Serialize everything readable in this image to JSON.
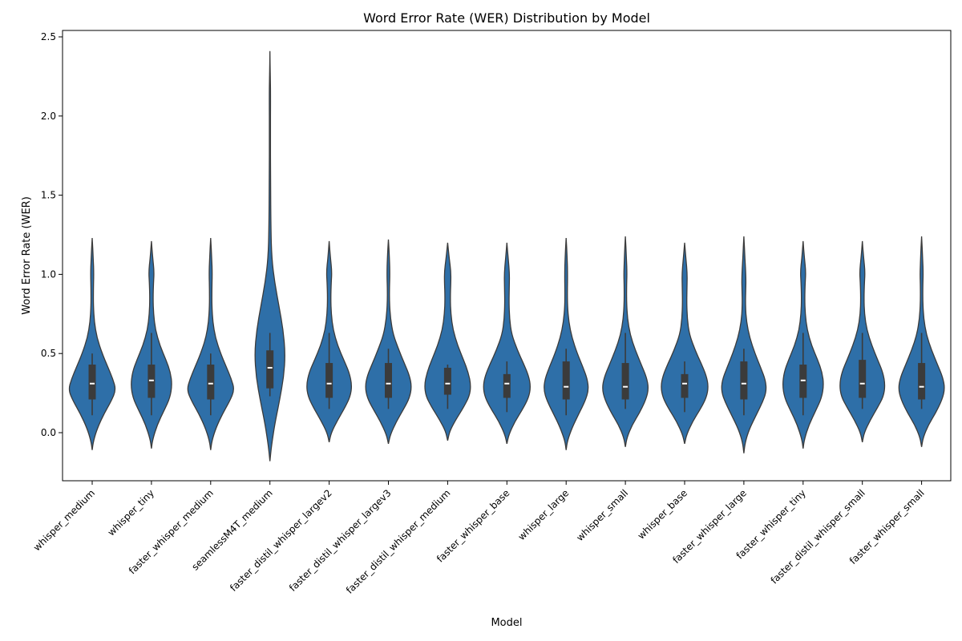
{
  "chart_data": {
    "type": "violin",
    "title": "Word Error Rate (WER) Distribution by Model",
    "xlabel": "Model",
    "ylabel": "Word Error Rate (WER)",
    "ylim": [
      -0.3,
      2.5
    ],
    "yticks": [
      0.0,
      0.5,
      1.0,
      1.5,
      2.0,
      2.5
    ],
    "ytick_labels": [
      "0.0",
      "0.5",
      "1.0",
      "1.5",
      "2.0",
      "2.5"
    ],
    "grid": false,
    "colors": {
      "fill": "#2e6fa8",
      "edge": "#3b3b3b",
      "box": "#3b3b3b",
      "median": "#ffffff"
    },
    "categories": [
      "whisper_medium",
      "whisper_tiny",
      "faster_whisper_medium",
      "seamlessM4T_medium",
      "faster_distil_whisper_largev2",
      "faster_distil_whisper_largev3",
      "faster_distil_whisper_medium",
      "faster_whisper_base",
      "whisper_large",
      "whisper_small",
      "whisper_base",
      "faster_whisper_large",
      "faster_whisper_tiny",
      "faster_distil_whisper_small",
      "faster_whisper_small"
    ],
    "series": [
      {
        "category": "whisper_medium",
        "min": -0.11,
        "max": 1.23,
        "q1": 0.21,
        "median": 0.31,
        "q3": 0.43,
        "whisker_low": 0.11,
        "whisker_high": 0.5,
        "density": [
          [
            -0.11,
            0
          ],
          [
            -0.05,
            0.05
          ],
          [
            0.03,
            0.2
          ],
          [
            0.12,
            0.45
          ],
          [
            0.2,
            0.72
          ],
          [
            0.27,
            0.9
          ],
          [
            0.34,
            0.78
          ],
          [
            0.42,
            0.58
          ],
          [
            0.5,
            0.38
          ],
          [
            0.6,
            0.18
          ],
          [
            0.7,
            0.08
          ],
          [
            0.8,
            0.045
          ],
          [
            0.9,
            0.045
          ],
          [
            1.0,
            0.06
          ],
          [
            1.1,
            0.04
          ],
          [
            1.23,
            0
          ]
        ]
      },
      {
        "category": "whisper_tiny",
        "min": -0.1,
        "max": 1.21,
        "q1": 0.22,
        "median": 0.33,
        "q3": 0.43,
        "whisker_low": 0.11,
        "whisker_high": 0.63,
        "density": [
          [
            -0.1,
            0
          ],
          [
            -0.04,
            0.05
          ],
          [
            0.05,
            0.22
          ],
          [
            0.14,
            0.48
          ],
          [
            0.22,
            0.7
          ],
          [
            0.3,
            0.78
          ],
          [
            0.38,
            0.72
          ],
          [
            0.46,
            0.55
          ],
          [
            0.55,
            0.32
          ],
          [
            0.65,
            0.15
          ],
          [
            0.75,
            0.08
          ],
          [
            0.85,
            0.06
          ],
          [
            0.95,
            0.08
          ],
          [
            1.02,
            0.1
          ],
          [
            1.1,
            0.05
          ],
          [
            1.21,
            0
          ]
        ]
      },
      {
        "category": "faster_whisper_medium",
        "min": -0.11,
        "max": 1.23,
        "q1": 0.21,
        "median": 0.31,
        "q3": 0.43,
        "whisker_low": 0.11,
        "whisker_high": 0.5,
        "density": [
          [
            -0.11,
            0
          ],
          [
            -0.05,
            0.05
          ],
          [
            0.03,
            0.2
          ],
          [
            0.12,
            0.45
          ],
          [
            0.2,
            0.72
          ],
          [
            0.27,
            0.9
          ],
          [
            0.34,
            0.78
          ],
          [
            0.42,
            0.58
          ],
          [
            0.5,
            0.38
          ],
          [
            0.6,
            0.18
          ],
          [
            0.7,
            0.08
          ],
          [
            0.8,
            0.045
          ],
          [
            0.9,
            0.045
          ],
          [
            1.0,
            0.06
          ],
          [
            1.1,
            0.04
          ],
          [
            1.23,
            0
          ]
        ]
      },
      {
        "category": "seamlessM4T_medium",
        "min": -0.18,
        "max": 2.41,
        "q1": 0.28,
        "median": 0.41,
        "q3": 0.52,
        "whisker_low": 0.23,
        "whisker_high": 0.63,
        "density": [
          [
            -0.18,
            0
          ],
          [
            -0.08,
            0.06
          ],
          [
            0.05,
            0.18
          ],
          [
            0.2,
            0.36
          ],
          [
            0.35,
            0.52
          ],
          [
            0.5,
            0.58
          ],
          [
            0.65,
            0.5
          ],
          [
            0.8,
            0.34
          ],
          [
            0.95,
            0.18
          ],
          [
            1.1,
            0.07
          ],
          [
            1.3,
            0.035
          ],
          [
            1.6,
            0.025
          ],
          [
            1.9,
            0.02
          ],
          [
            2.1,
            0.025
          ],
          [
            2.25,
            0.015
          ],
          [
            2.41,
            0
          ]
        ]
      },
      {
        "category": "faster_distil_whisper_largev2",
        "min": -0.06,
        "max": 1.21,
        "q1": 0.22,
        "median": 0.31,
        "q3": 0.44,
        "whisker_low": 0.15,
        "whisker_high": 0.63,
        "density": [
          [
            -0.06,
            0
          ],
          [
            0.0,
            0.08
          ],
          [
            0.08,
            0.32
          ],
          [
            0.16,
            0.6
          ],
          [
            0.23,
            0.8
          ],
          [
            0.3,
            0.86
          ],
          [
            0.38,
            0.76
          ],
          [
            0.46,
            0.55
          ],
          [
            0.55,
            0.32
          ],
          [
            0.65,
            0.15
          ],
          [
            0.75,
            0.08
          ],
          [
            0.85,
            0.06
          ],
          [
            0.95,
            0.08
          ],
          [
            1.02,
            0.1
          ],
          [
            1.1,
            0.05
          ],
          [
            1.21,
            0
          ]
        ]
      },
      {
        "category": "faster_distil_whisper_largev3",
        "min": -0.07,
        "max": 1.22,
        "q1": 0.22,
        "median": 0.31,
        "q3": 0.44,
        "whisker_low": 0.15,
        "whisker_high": 0.53,
        "density": [
          [
            -0.07,
            0
          ],
          [
            -0.01,
            0.08
          ],
          [
            0.07,
            0.3
          ],
          [
            0.15,
            0.58
          ],
          [
            0.22,
            0.8
          ],
          [
            0.29,
            0.88
          ],
          [
            0.36,
            0.8
          ],
          [
            0.44,
            0.6
          ],
          [
            0.52,
            0.4
          ],
          [
            0.62,
            0.18
          ],
          [
            0.72,
            0.08
          ],
          [
            0.82,
            0.04
          ],
          [
            0.92,
            0.04
          ],
          [
            1.0,
            0.055
          ],
          [
            1.1,
            0.04
          ],
          [
            1.22,
            0
          ]
        ]
      },
      {
        "category": "faster_distil_whisper_medium",
        "min": -0.05,
        "max": 1.2,
        "q1": 0.24,
        "median": 0.31,
        "q3": 0.41,
        "whisker_low": 0.15,
        "whisker_high": 0.43,
        "density": [
          [
            -0.05,
            0
          ],
          [
            0.01,
            0.08
          ],
          [
            0.08,
            0.3
          ],
          [
            0.16,
            0.6
          ],
          [
            0.23,
            0.82
          ],
          [
            0.3,
            0.88
          ],
          [
            0.38,
            0.78
          ],
          [
            0.46,
            0.6
          ],
          [
            0.55,
            0.38
          ],
          [
            0.65,
            0.2
          ],
          [
            0.75,
            0.12
          ],
          [
            0.85,
            0.1
          ],
          [
            0.95,
            0.12
          ],
          [
            1.02,
            0.12
          ],
          [
            1.1,
            0.06
          ],
          [
            1.2,
            0
          ]
        ]
      },
      {
        "category": "faster_whisper_base",
        "min": -0.07,
        "max": 1.2,
        "q1": 0.22,
        "median": 0.31,
        "q3": 0.37,
        "whisker_low": 0.13,
        "whisker_high": 0.45,
        "density": [
          [
            -0.07,
            0
          ],
          [
            -0.01,
            0.08
          ],
          [
            0.07,
            0.3
          ],
          [
            0.15,
            0.6
          ],
          [
            0.22,
            0.82
          ],
          [
            0.29,
            0.9
          ],
          [
            0.36,
            0.82
          ],
          [
            0.44,
            0.62
          ],
          [
            0.52,
            0.4
          ],
          [
            0.62,
            0.18
          ],
          [
            0.72,
            0.1
          ],
          [
            0.82,
            0.08
          ],
          [
            0.92,
            0.09
          ],
          [
            1.0,
            0.1
          ],
          [
            1.1,
            0.05
          ],
          [
            1.2,
            0
          ]
        ]
      },
      {
        "category": "whisper_large",
        "min": -0.11,
        "max": 1.23,
        "q1": 0.21,
        "median": 0.29,
        "q3": 0.45,
        "whisker_low": 0.11,
        "whisker_high": 0.53,
        "density": [
          [
            -0.11,
            0
          ],
          [
            -0.05,
            0.05
          ],
          [
            0.03,
            0.22
          ],
          [
            0.12,
            0.48
          ],
          [
            0.2,
            0.72
          ],
          [
            0.27,
            0.85
          ],
          [
            0.34,
            0.8
          ],
          [
            0.42,
            0.62
          ],
          [
            0.5,
            0.42
          ],
          [
            0.6,
            0.22
          ],
          [
            0.7,
            0.1
          ],
          [
            0.8,
            0.05
          ],
          [
            0.9,
            0.045
          ],
          [
            1.0,
            0.055
          ],
          [
            1.1,
            0.04
          ],
          [
            1.23,
            0
          ]
        ]
      },
      {
        "category": "whisper_small",
        "min": -0.09,
        "max": 1.24,
        "q1": 0.21,
        "median": 0.29,
        "q3": 0.44,
        "whisker_low": 0.15,
        "whisker_high": 0.63,
        "density": [
          [
            -0.09,
            0
          ],
          [
            -0.03,
            0.06
          ],
          [
            0.05,
            0.26
          ],
          [
            0.13,
            0.55
          ],
          [
            0.21,
            0.78
          ],
          [
            0.28,
            0.88
          ],
          [
            0.35,
            0.8
          ],
          [
            0.43,
            0.6
          ],
          [
            0.52,
            0.38
          ],
          [
            0.62,
            0.18
          ],
          [
            0.72,
            0.08
          ],
          [
            0.82,
            0.045
          ],
          [
            0.92,
            0.045
          ],
          [
            1.0,
            0.06
          ],
          [
            1.1,
            0.04
          ],
          [
            1.24,
            0
          ]
        ]
      },
      {
        "category": "whisper_base",
        "min": -0.07,
        "max": 1.2,
        "q1": 0.22,
        "median": 0.31,
        "q3": 0.37,
        "whisker_low": 0.13,
        "whisker_high": 0.45,
        "density": [
          [
            -0.07,
            0
          ],
          [
            -0.01,
            0.08
          ],
          [
            0.07,
            0.3
          ],
          [
            0.15,
            0.6
          ],
          [
            0.22,
            0.82
          ],
          [
            0.29,
            0.9
          ],
          [
            0.36,
            0.82
          ],
          [
            0.44,
            0.62
          ],
          [
            0.52,
            0.4
          ],
          [
            0.62,
            0.18
          ],
          [
            0.72,
            0.1
          ],
          [
            0.82,
            0.08
          ],
          [
            0.92,
            0.09
          ],
          [
            1.0,
            0.1
          ],
          [
            1.1,
            0.05
          ],
          [
            1.2,
            0
          ]
        ]
      },
      {
        "category": "faster_whisper_large",
        "min": -0.13,
        "max": 1.24,
        "q1": 0.21,
        "median": 0.31,
        "q3": 0.45,
        "whisker_low": 0.11,
        "whisker_high": 0.53,
        "density": [
          [
            -0.13,
            0
          ],
          [
            -0.06,
            0.05
          ],
          [
            0.02,
            0.2
          ],
          [
            0.11,
            0.46
          ],
          [
            0.19,
            0.7
          ],
          [
            0.26,
            0.85
          ],
          [
            0.33,
            0.82
          ],
          [
            0.41,
            0.64
          ],
          [
            0.5,
            0.42
          ],
          [
            0.6,
            0.22
          ],
          [
            0.7,
            0.1
          ],
          [
            0.8,
            0.06
          ],
          [
            0.9,
            0.07
          ],
          [
            0.98,
            0.08
          ],
          [
            1.1,
            0.04
          ],
          [
            1.24,
            0
          ]
        ]
      },
      {
        "category": "faster_whisper_tiny",
        "min": -0.1,
        "max": 1.21,
        "q1": 0.22,
        "median": 0.33,
        "q3": 0.43,
        "whisker_low": 0.11,
        "whisker_high": 0.63,
        "density": [
          [
            -0.1,
            0
          ],
          [
            -0.04,
            0.05
          ],
          [
            0.05,
            0.22
          ],
          [
            0.14,
            0.48
          ],
          [
            0.22,
            0.7
          ],
          [
            0.3,
            0.78
          ],
          [
            0.38,
            0.72
          ],
          [
            0.46,
            0.55
          ],
          [
            0.55,
            0.32
          ],
          [
            0.65,
            0.15
          ],
          [
            0.75,
            0.08
          ],
          [
            0.85,
            0.06
          ],
          [
            0.95,
            0.08
          ],
          [
            1.02,
            0.1
          ],
          [
            1.1,
            0.05
          ],
          [
            1.21,
            0
          ]
        ]
      },
      {
        "category": "faster_distil_whisper_small",
        "min": -0.06,
        "max": 1.21,
        "q1": 0.22,
        "median": 0.31,
        "q3": 0.46,
        "whisker_low": 0.15,
        "whisker_high": 0.63,
        "density": [
          [
            -0.06,
            0
          ],
          [
            0.0,
            0.07
          ],
          [
            0.08,
            0.3
          ],
          [
            0.16,
            0.58
          ],
          [
            0.23,
            0.8
          ],
          [
            0.3,
            0.86
          ],
          [
            0.38,
            0.78
          ],
          [
            0.46,
            0.58
          ],
          [
            0.55,
            0.36
          ],
          [
            0.65,
            0.17
          ],
          [
            0.75,
            0.08
          ],
          [
            0.85,
            0.06
          ],
          [
            0.95,
            0.08
          ],
          [
            1.02,
            0.1
          ],
          [
            1.1,
            0.05
          ],
          [
            1.21,
            0
          ]
        ]
      },
      {
        "category": "faster_whisper_small",
        "min": -0.09,
        "max": 1.24,
        "q1": 0.21,
        "median": 0.29,
        "q3": 0.44,
        "whisker_low": 0.15,
        "whisker_high": 0.63,
        "density": [
          [
            -0.09,
            0
          ],
          [
            -0.03,
            0.06
          ],
          [
            0.05,
            0.26
          ],
          [
            0.13,
            0.55
          ],
          [
            0.21,
            0.78
          ],
          [
            0.28,
            0.88
          ],
          [
            0.35,
            0.8
          ],
          [
            0.43,
            0.6
          ],
          [
            0.52,
            0.38
          ],
          [
            0.62,
            0.18
          ],
          [
            0.72,
            0.08
          ],
          [
            0.82,
            0.045
          ],
          [
            0.92,
            0.045
          ],
          [
            1.0,
            0.06
          ],
          [
            1.1,
            0.04
          ],
          [
            1.24,
            0
          ]
        ]
      }
    ]
  }
}
